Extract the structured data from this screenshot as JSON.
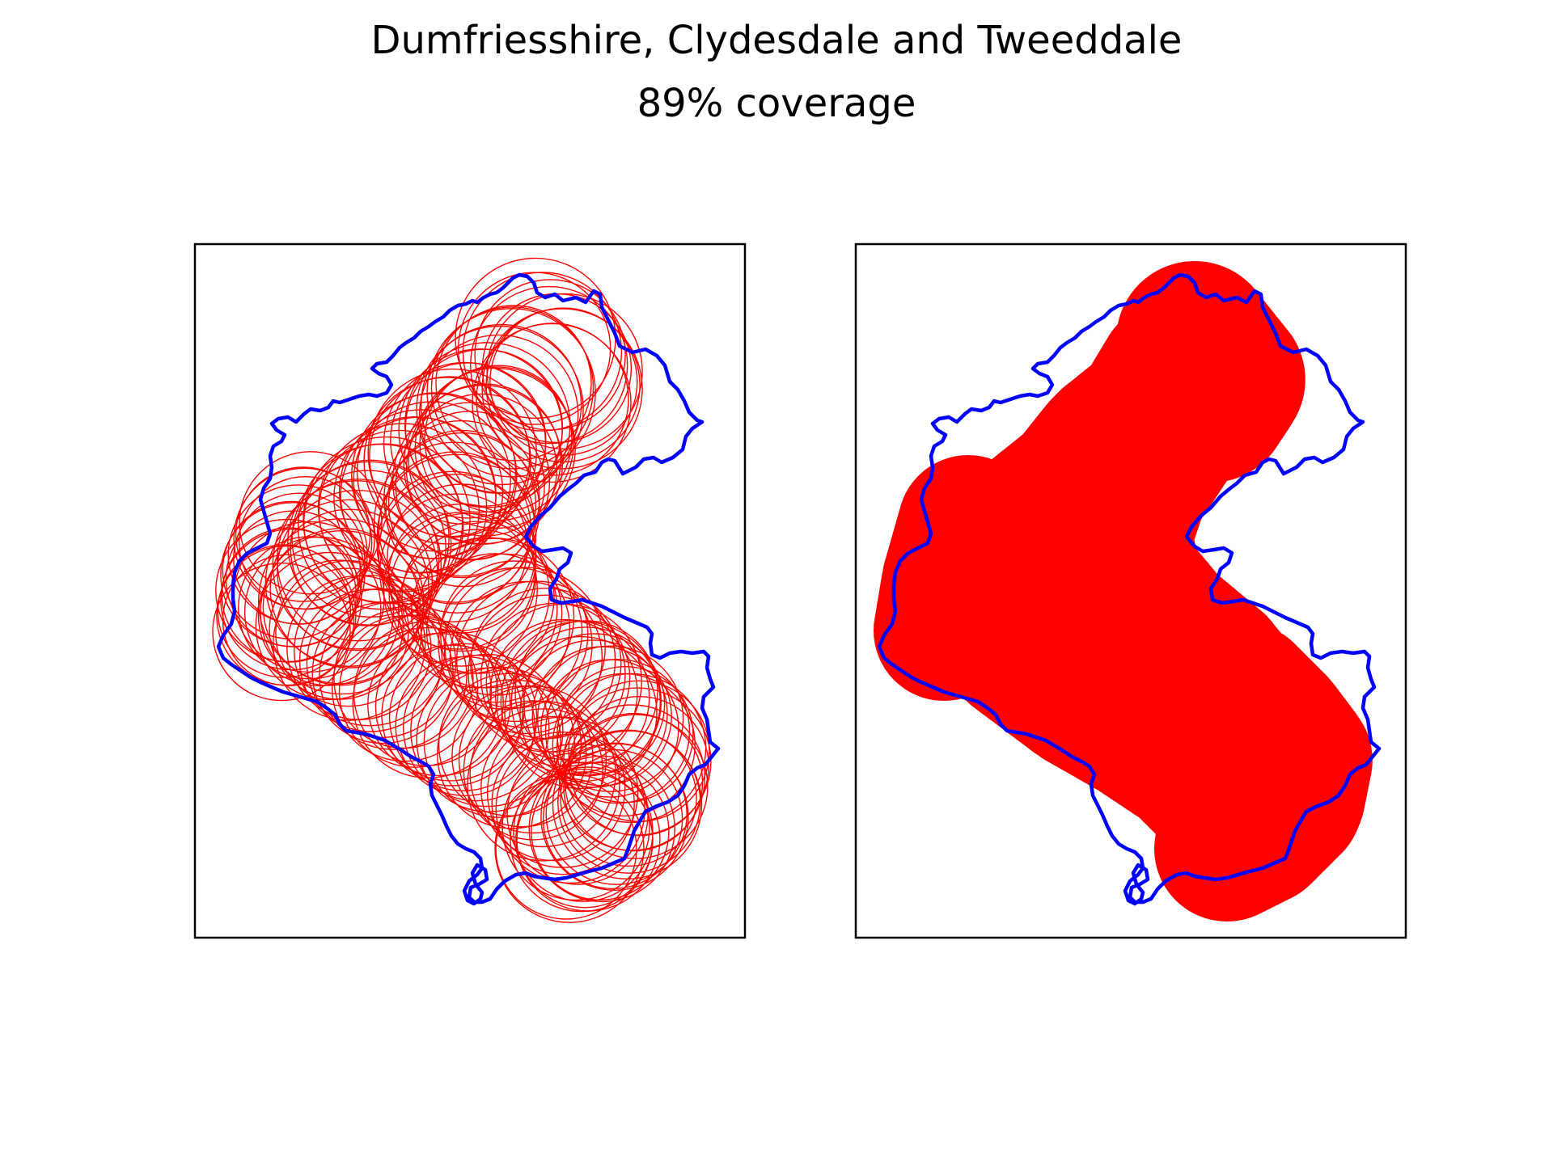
{
  "figure": {
    "title": "Dumfriesshire, Clydesdale and Tweeddale",
    "subtitle": "89% coverage"
  },
  "colors": {
    "boundary": "#0000ff",
    "coverage": "#ff0000",
    "frame": "#000000"
  },
  "chart_data": [
    {
      "type": "map",
      "panel": "left",
      "region": "Dumfriesshire, Clydesdale and Tweeddale",
      "layers": [
        "constituency boundary (blue outline)",
        "coverage circles (red outlines)"
      ],
      "axes_visible": false
    },
    {
      "type": "map",
      "panel": "right",
      "region": "Dumfriesshire, Clydesdale and Tweeddale",
      "layers": [
        "constituency boundary (blue outline)",
        "coverage union (red fill)"
      ],
      "coverage_percent": 89,
      "axes_visible": false
    }
  ]
}
